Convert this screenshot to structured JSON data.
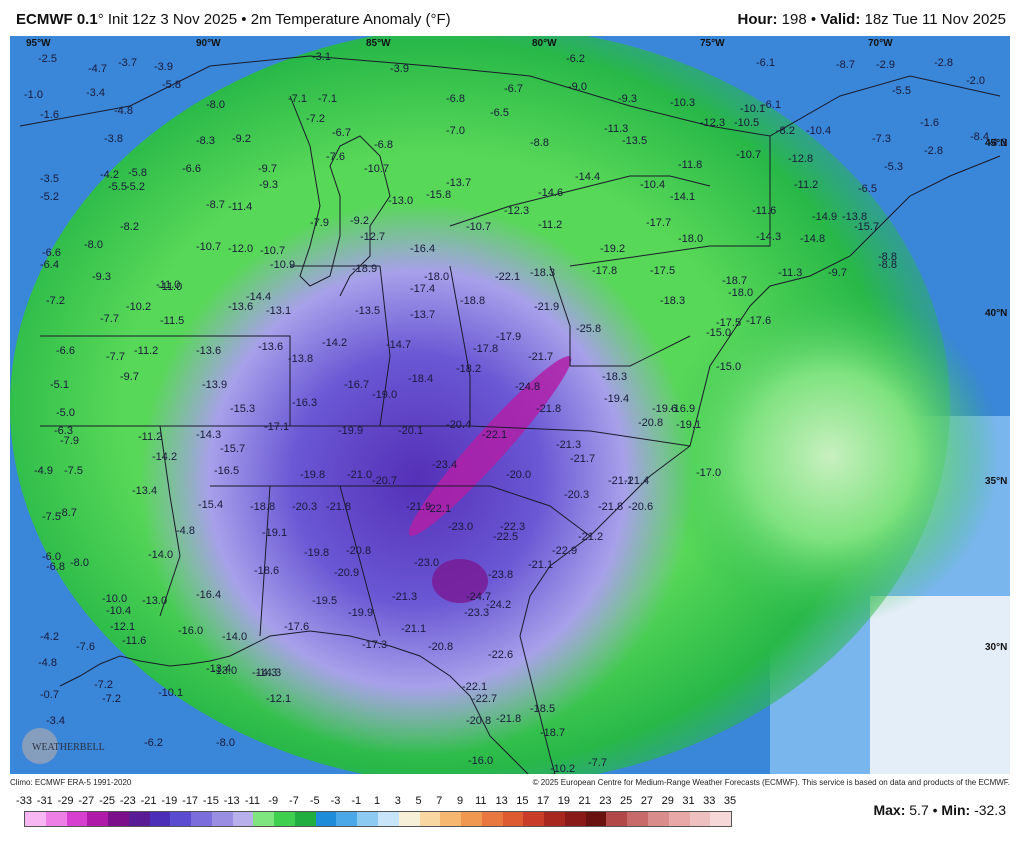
{
  "header": {
    "model": "ECMWF 0.1",
    "init": "° Init 12z 3 Nov 2025",
    "sep1": " • ",
    "field": "2m Temperature Anomaly (°F)",
    "hour_label": "Hour:",
    "hour_value": " 198",
    "sep2": " • ",
    "valid_label": "Valid:",
    "valid_value": " 18z Tue 11 Nov 2025"
  },
  "logo_text": "WEATHERBELL",
  "coords": {
    "lon": [
      "95°W",
      "90°W",
      "85°W",
      "80°W",
      "75°W",
      "70°W"
    ],
    "lat": [
      "45°N",
      "40°N",
      "35°N",
      "30°N"
    ]
  },
  "anomaly_labels": [
    "-2.5",
    "-4.7",
    "-3.7",
    "-3.9",
    "-3.1",
    "-3.9",
    "-6.2",
    "-6.1",
    "-8.7",
    "-2.9",
    "-2.8",
    "-1.0",
    "-3.4",
    "-5.8",
    "-8.0",
    "-7.1",
    "-7.1",
    "-6.8",
    "-6.7",
    "-9.0",
    "-9.3",
    "-10.3",
    "-10.1",
    "-6.1",
    "-5.5",
    "-2.0",
    "-1.6",
    "-4.8",
    "-7.2",
    "-6.5",
    "-12.3",
    "-10.5",
    "-1.6",
    "-8.4",
    "-3.8",
    "-8.3",
    "-9.2",
    "-6.7",
    "-6.8",
    "-7.0",
    "-8.8",
    "-11.3",
    "-13.5",
    "-8.2",
    "-10.4",
    "-7.3",
    "-2.8",
    "-4.3",
    "-7.6",
    "-10.7",
    "-10.7",
    "-12.8",
    "-5.3",
    "-3.5",
    "-4.2",
    "-5.8",
    "-6.6",
    "-9.7",
    "-11.8",
    "-14.4",
    "-10.4",
    "-11.2",
    "-6.5",
    "-5.5",
    "-5.2",
    "-9.3",
    "-13.7",
    "-14.6",
    "-14.1",
    "-5.2",
    "-8.7",
    "-11.4",
    "-13.0",
    "-15.8",
    "-12.3",
    "-11.6",
    "-14.9",
    "-13.8",
    "-8.2",
    "-7.9",
    "-9.2",
    "-12.7",
    "-10.7",
    "-11.2",
    "-17.7",
    "-15.7",
    "-14.3",
    "-14.8",
    "-8.0",
    "-10.7",
    "-12.0",
    "-10.7",
    "-16.4",
    "-19.2",
    "-18.0",
    "-8.8",
    "-6.6",
    "-10.9",
    "-18.9",
    "-18.0",
    "-22.1",
    "-18.3",
    "-17.8",
    "-17.5",
    "-18.7",
    "-11.3",
    "-9.7",
    "-6.4",
    "-11.0",
    "-17.4",
    "-8.8",
    "-9.3",
    "-11.0",
    "-18.8",
    "-18.0",
    "-7.2",
    "-10.2",
    "-14.4",
    "-13.6",
    "-13.1",
    "-13.5",
    "-13.7",
    "-21.9",
    "-18.3",
    "-7.7",
    "-11.5",
    "-25.8",
    "-17.5",
    "-17.6",
    "-6.6",
    "-11.2",
    "-13.6",
    "-13.6",
    "-14.2",
    "-14.7",
    "-17.9",
    "-15.0",
    "-7.7",
    "-13.8",
    "-17.8",
    "-21.7",
    "-15.0",
    "-5.1",
    "-9.7",
    "-16.7",
    "-18.4",
    "-18.2",
    "-18.3",
    "-13.9",
    "-19.0",
    "-24.8",
    "-19.4",
    "-5.0",
    "-16.3",
    "-15.3",
    "-21.8",
    "-19.6",
    "-16.9",
    "-6.3",
    "-17.1",
    "-19.9",
    "-20.1",
    "-20.4",
    "-20.8",
    "-19.1",
    "-7.9",
    "-11.2",
    "-14.3",
    "-22.1",
    "-4.9",
    "-14.2",
    "-15.7",
    "-21.3",
    "-21.7",
    "-7.5",
    "-16.5",
    "-23.4",
    "-20.0",
    "-21.1",
    "-21.4",
    "-19.8",
    "-21.0",
    "-20.7",
    "-17.0",
    "-13.4",
    "-21.9",
    "-20.3",
    "-7.5",
    "-8.7",
    "-15.4",
    "-18.8",
    "-20.3",
    "-21.8",
    "-22.1",
    "-21.8",
    "-20.6",
    "-4.8",
    "-19.1",
    "-23.0",
    "-22.3",
    "-22.5",
    "-21.2",
    "-6.0",
    "-14.0",
    "-19.8",
    "-20.8",
    "-23.0",
    "-22.9",
    "-6.8",
    "-8.0",
    "-18.6",
    "-20.9",
    "-21.1",
    "-23.8",
    "-10.0",
    "-13.0",
    "-16.4",
    "-19.5",
    "-21.3",
    "-24.7",
    "-24.2",
    "-10.4",
    "-19.9",
    "-23.3",
    "-12.1",
    "-17.6",
    "-21.1",
    "-4.2",
    "-11.6",
    "-16.0",
    "-14.0",
    "-17.3",
    "-20.8",
    "-7.6",
    "-14.3",
    "-22.6",
    "-4.8",
    "-13.0",
    "-7.2",
    "-13.4",
    "-14.3",
    "-0.7",
    "-7.2",
    "-10.1",
    "-12.1",
    "-22.1",
    "-22.7",
    "-18.5",
    "-3.4",
    "-20.8",
    "-21.8",
    "-6.2",
    "-8.0",
    "-18.7",
    "-16.0",
    "-7.7",
    "-10.2"
  ],
  "credits": {
    "climo": "Climo: ECMWF ERA-5 1991-2020",
    "copyright": "© 2025 European Centre for Medium-Range Weather Forecasts (ECMWF). This service is based on data and products of the ECMWF."
  },
  "legend": {
    "ticks": [
      "-33",
      "-31",
      "-29",
      "-27",
      "-25",
      "-23",
      "-21",
      "-19",
      "-17",
      "-15",
      "-13",
      "-11",
      "-9",
      "-7",
      "-5",
      "-3",
      "-1",
      "1",
      "3",
      "5",
      "7",
      "9",
      "11",
      "13",
      "15",
      "17",
      "19",
      "21",
      "23",
      "25",
      "27",
      "29",
      "31",
      "33",
      "35"
    ],
    "colors": [
      "#f7b7f2",
      "#ee7fe6",
      "#d63fcf",
      "#b01aa8",
      "#7c108a",
      "#5a1c96",
      "#4b2fb8",
      "#5b4bd0",
      "#7c6ddc",
      "#9a8ee2",
      "#b8b0ea",
      "#7fe67f",
      "#3fcf4f",
      "#1fae3f",
      "#1e8cd8",
      "#4aa8e8",
      "#8ccaf2",
      "#c8e4f8",
      "#f6f0d8",
      "#f8d8a0",
      "#f6b870",
      "#f09850",
      "#e87840",
      "#de5a30",
      "#c83c28",
      "#a82820",
      "#8a1a18",
      "#6a1210",
      "#b24848",
      "#c86a6a",
      "#d88c8c",
      "#e8a8a8",
      "#eec0c0",
      "#f6d8d8"
    ],
    "max_label": "Max:",
    "max_value": " 5.7",
    "sep": " • ",
    "min_label": "Min:",
    "min_value": " -32.3"
  }
}
